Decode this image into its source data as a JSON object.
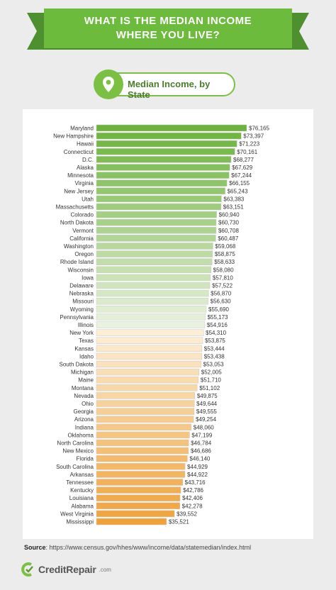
{
  "header": {
    "title_line1": "WHAT IS THE MEDIAN INCOME",
    "title_line2": "WHERE YOU LIVE?"
  },
  "subtitle": {
    "label": "Median Income, by State",
    "icon": "map-pin-icon"
  },
  "colors": {
    "green_dark": "#6bb33a",
    "green_light": "#e9f2de",
    "orange_light": "#fdf1dc",
    "orange_dark": "#f0a238"
  },
  "chart_data": {
    "type": "bar",
    "orientation": "horizontal",
    "title": "Median Income, by State",
    "xlabel": "",
    "ylabel": "",
    "xlim": [
      0,
      76165
    ],
    "grid": false,
    "categories": [
      "Maryland",
      "New Hampshire",
      "Hawaii",
      "Connecticut",
      "D.C.",
      "Alaska",
      "Minnesota",
      "Virginia",
      "New Jersey",
      "Utah",
      "Massachusetts",
      "Colorado",
      "North Dakota",
      "Vermont",
      "California",
      "Washington",
      "Oregon",
      "Rhode Island",
      "Wisconsin",
      "Iowa",
      "Delaware",
      "Nebraska",
      "Missouri",
      "Wyoming",
      "Pennsylvania",
      "Illinois",
      "New York",
      "Texas",
      "Kansas",
      "Idaho",
      "South Dakota",
      "Michigan",
      "Maine",
      "Montana",
      "Nevada",
      "Ohio",
      "Georgia",
      "Arizona",
      "Indiana",
      "Oklahoma",
      "North Carolina",
      "New Mexico",
      "Florida",
      "South Carolina",
      "Arkansas",
      "Tennessee",
      "Kentucky",
      "Louisiana",
      "Alabama",
      "West Virginia",
      "Mississippi"
    ],
    "values": [
      76165,
      73397,
      71223,
      70161,
      68277,
      67629,
      67244,
      66155,
      65243,
      63383,
      63151,
      60940,
      60730,
      60708,
      60487,
      59068,
      58875,
      58633,
      58080,
      57810,
      57522,
      56870,
      56630,
      55690,
      55173,
      54916,
      54310,
      53875,
      53444,
      53438,
      53053,
      52005,
      51710,
      51102,
      49875,
      49644,
      49555,
      49254,
      48060,
      47199,
      46784,
      46686,
      46140,
      44929,
      44922,
      43716,
      42786,
      42406,
      42278,
      39552,
      35521
    ],
    "labels": [
      "$76,165",
      "$73,397",
      "$71,223",
      "$70,161",
      "$68,277",
      "$67,629",
      "$67,244",
      "$66,155",
      "$65,243",
      "$63,383",
      "$63,151",
      "$60,940",
      "$60,730",
      "$60,708",
      "$60,487",
      "$59,068",
      "$58,875",
      "$58,633",
      "$58,080",
      "$57,810",
      "$57,522",
      "$56,870",
      "$56,630",
      "$55,690",
      "$55,173",
      "$54,916",
      "$54,310",
      "$53,875",
      "$53,444",
      "$53,438",
      "$53,053",
      "$52,005",
      "$51,710",
      "$51,102",
      "$49,875",
      "$49,644",
      "$49,555",
      "$49,254",
      "$48,060",
      "$47,199",
      "$46,784",
      "$46,686",
      "$46,140",
      "$44,929",
      "$44,922",
      "$43,716",
      "$42,786",
      "$42,406",
      "$42,278",
      "$39,552",
      "$35,521"
    ]
  },
  "source": {
    "label": "Source",
    "url": ": https://www.census.gov/hhes/www/income/data/statemedian/index.html"
  },
  "brand": {
    "name": "CreditRepair",
    "tld": ".com",
    "icon": "credit-repair-logo-icon"
  }
}
